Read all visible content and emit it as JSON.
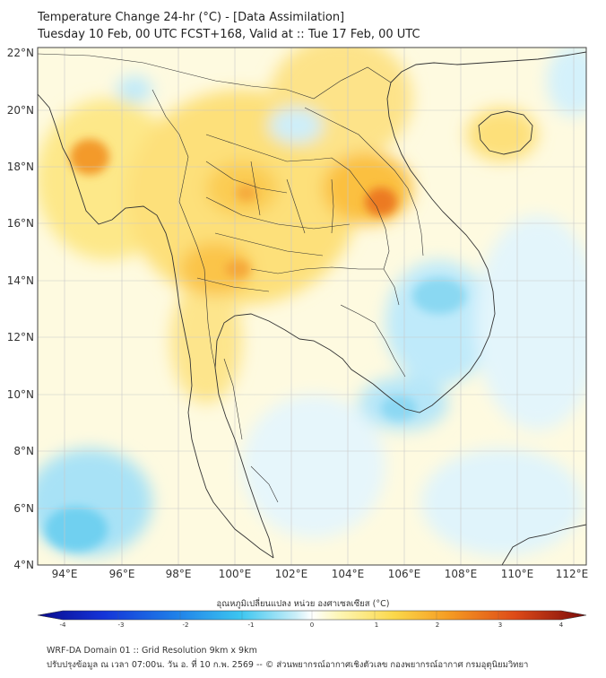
{
  "header": {
    "title": "Temperature Change 24-hr (°C) - [Data Assimilation]",
    "subtitle": "Tuesday 10 Feb, 00 UTC FCST+168, Valid at :: Tue 17 Feb, 00 UTC"
  },
  "map": {
    "lat_labels": [
      "22°N",
      "20°N",
      "18°N",
      "16°N",
      "14°N",
      "12°N",
      "10°N",
      "8°N",
      "6°N",
      "4°N"
    ],
    "lon_labels": [
      "94°E",
      "96°E",
      "98°E",
      "100°E",
      "102°E",
      "104°E",
      "106°E",
      "108°E",
      "110°E",
      "112°E"
    ],
    "colors": {
      "warm_light": "#fdf3a6",
      "warm": "#fbd24a",
      "hot": "#f08a1e",
      "hotter": "#d8461a",
      "cool_light": "#d9f3fb",
      "cool": "#9fe1f5",
      "cold": "#5ccbee"
    }
  },
  "colorbar": {
    "title": "อุณหภูมิเปลี่ยนแปลง หน่วย องศาเซลเซียส (°C)",
    "ticks": [
      "-4",
      "-3",
      "-2",
      "-1",
      "0",
      "1",
      "2",
      "3",
      "4"
    ]
  },
  "footer": {
    "line1": "WRF-DA Domain 01 :: Grid Resolution 9km x 9km",
    "line2": "ปรับปรุงข้อมูล ณ เวลา 07:00น. วัน อ. ที่ 10 ก.พ. 2569 -- © ส่วนพยากรณ์อากาศเชิงตัวเลข กองพยากรณ์อากาศ กรมอุตุนิยมวิทยา"
  }
}
